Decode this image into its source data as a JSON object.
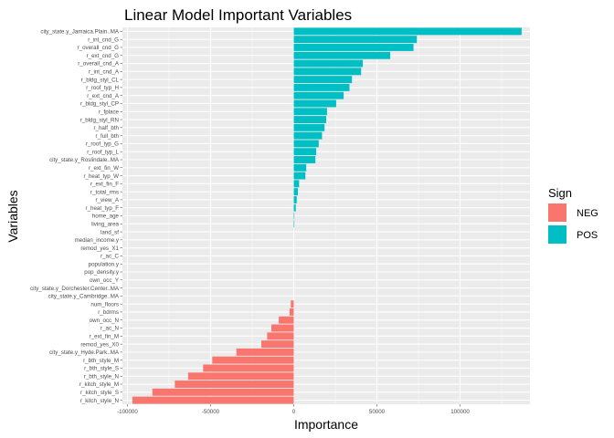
{
  "chart_data": {
    "type": "bar",
    "orientation": "horizontal",
    "title": "Linear Model Important Variables",
    "xlabel": "Importance",
    "ylabel": "Variables",
    "xlim": [
      -103000,
      142000
    ],
    "xticks": [
      -100000,
      -50000,
      0,
      50000,
      100000
    ],
    "xtick_labels": [
      "-100000",
      "-50000",
      "0",
      "50000",
      "100000"
    ],
    "grid": true,
    "legend": {
      "title": "Sign",
      "placement": "right",
      "entries": [
        {
          "label": "NEG",
          "color": "#F8766D"
        },
        {
          "label": "POS",
          "color": "#00BFC4"
        }
      ]
    },
    "colors": {
      "NEG": "#F8766D",
      "POS": "#00BFC4",
      "panel": "#EBEBEB",
      "grid": "#FFFFFF"
    },
    "categories": [
      "city_state.y_Jamaica.Plain..MA",
      "r_int_cnd_G",
      "r_overall_cnd_G",
      "r_ext_cnd_G",
      "r_overall_cnd_A",
      "r_int_cnd_A",
      "r_bldg_styl_CL",
      "r_roof_typ_H",
      "r_ext_cnd_A",
      "r_bldg_styl_CP",
      "r_fplace",
      "r_bldg_styl_RN",
      "r_half_bth",
      "r_full_bth",
      "r_roof_typ_G",
      "r_roof_typ_L",
      "city_state.y_Roslindale..MA",
      "r_ext_fin_W",
      "r_heat_typ_W",
      "r_ext_fin_F",
      "r_total_rms",
      "r_view_A",
      "r_heat_typ_F",
      "home_age",
      "living_area",
      "land_sf",
      "median_income.y",
      "remod_yes_X1",
      "r_ac_C",
      "population.y",
      "pop_density.y",
      "own_occ_Y",
      "city_state.y_Dorchester.Center..MA",
      "city_state.y_Cambridge..MA",
      "num_floors",
      "r_bdrms",
      "own_occ_N",
      "r_ac_N",
      "r_ext_fin_M",
      "remod_yes_X0",
      "city_state.y_Hyde.Park..MA",
      "r_bth_style_M",
      "r_bth_style_S",
      "r_bth_style_N",
      "r_kitch_style_M",
      "r_kitch_style_S",
      "r_kitch_style_N"
    ],
    "values": [
      137000,
      74000,
      72000,
      58000,
      41500,
      40500,
      35000,
      33500,
      30000,
      25500,
      20000,
      19500,
      18500,
      17000,
      15000,
      13500,
      13000,
      7500,
      7000,
      3200,
      2500,
      1800,
      1200,
      300,
      150,
      0,
      0,
      0,
      0,
      0,
      0,
      0,
      0,
      0,
      -1800,
      -2500,
      -9000,
      -13500,
      -16000,
      -19500,
      -34500,
      -49000,
      -54500,
      -63500,
      -71500,
      -85000,
      -97000
    ],
    "signs": [
      "POS",
      "POS",
      "POS",
      "POS",
      "POS",
      "POS",
      "POS",
      "POS",
      "POS",
      "POS",
      "POS",
      "POS",
      "POS",
      "POS",
      "POS",
      "POS",
      "POS",
      "POS",
      "POS",
      "POS",
      "POS",
      "POS",
      "POS",
      "POS",
      "POS",
      "POS",
      "POS",
      "POS",
      "POS",
      "POS",
      "POS",
      "POS",
      "POS",
      "POS",
      "NEG",
      "NEG",
      "NEG",
      "NEG",
      "NEG",
      "NEG",
      "NEG",
      "NEG",
      "NEG",
      "NEG",
      "NEG",
      "NEG",
      "NEG"
    ]
  }
}
